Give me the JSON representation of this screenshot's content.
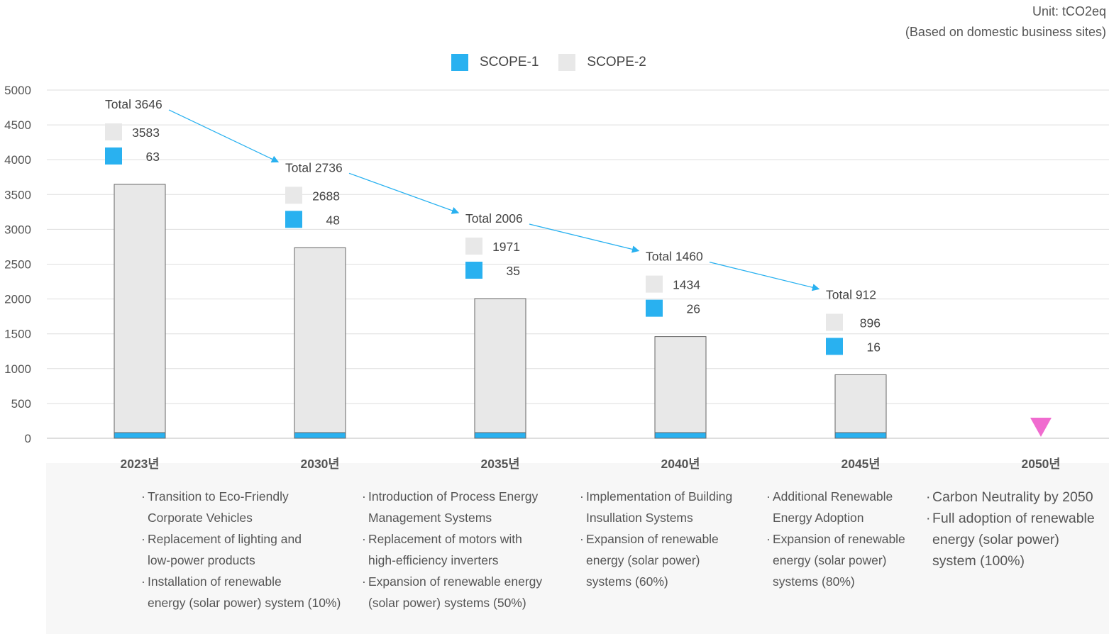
{
  "header": {
    "unit_line1": "Unit: tCO2eq",
    "unit_line2": "(Based on domestic business sites)"
  },
  "legend": [
    {
      "label": "SCOPE-1",
      "color": "#29b1f0"
    },
    {
      "label": "SCOPE-2",
      "color": "#e8e8e8"
    }
  ],
  "chart_data": {
    "type": "bar",
    "stacked": true,
    "categories": [
      "2023년",
      "2030년",
      "2035년",
      "2040년",
      "2045년",
      "2050년"
    ],
    "series": [
      {
        "name": "SCOPE-1",
        "values": [
          63,
          48,
          35,
          26,
          16,
          0
        ],
        "color": "#29b1f0"
      },
      {
        "name": "SCOPE-2",
        "values": [
          3583,
          2688,
          1971,
          1434,
          896,
          0
        ],
        "color": "#e8e8e8"
      }
    ],
    "totals": [
      3646,
      2736,
      2006,
      1460,
      912,
      null
    ],
    "total_labels": [
      "Total 3646",
      "Total 2736",
      "Total 2006",
      "Total 1460",
      "Total 912"
    ],
    "ylim": [
      0,
      5000
    ],
    "yticks": [
      "0",
      "500",
      "1000",
      "1500",
      "2000",
      "2500",
      "3000",
      "3500",
      "4000",
      "4500",
      "5000"
    ],
    "grid": true,
    "marker_2050": {
      "category": "2050년",
      "shape": "down-triangle",
      "color": "#f06bcf"
    }
  },
  "notes": [
    {
      "year": "2023년",
      "bullets": [
        "Transition to Eco-Friendly\nCorporate Vehicles",
        "Replacement of lighting and\nlow-power products",
        "Installation of renewable\nenergy (solar power) system (10%)"
      ]
    },
    {
      "year": "2030년",
      "bullets": [
        "Introduction of Process Energy\nManagement Systems",
        "Replacement of motors with\nhigh-efficiency inverters",
        "Expansion of renewable energy\n(solar power) systems (50%)"
      ]
    },
    {
      "year": "2035년",
      "bullets": [
        "Implementation of Building\nInsullation Systems",
        "Expansion of renewable\nenergy (solar power)\nsystems (60%)"
      ]
    },
    {
      "year": "2045년",
      "bullets": [
        "Additional Renewable\nEnergy Adoption",
        "Expansion of renewable\nenergy (solar power)\nsystems (80%)"
      ]
    },
    {
      "year": "2050년",
      "bullets": [
        "Carbon Neutrality by 2050",
        "Full adoption of renewable\nenergy (solar power)\nsystem (100%)"
      ]
    }
  ]
}
